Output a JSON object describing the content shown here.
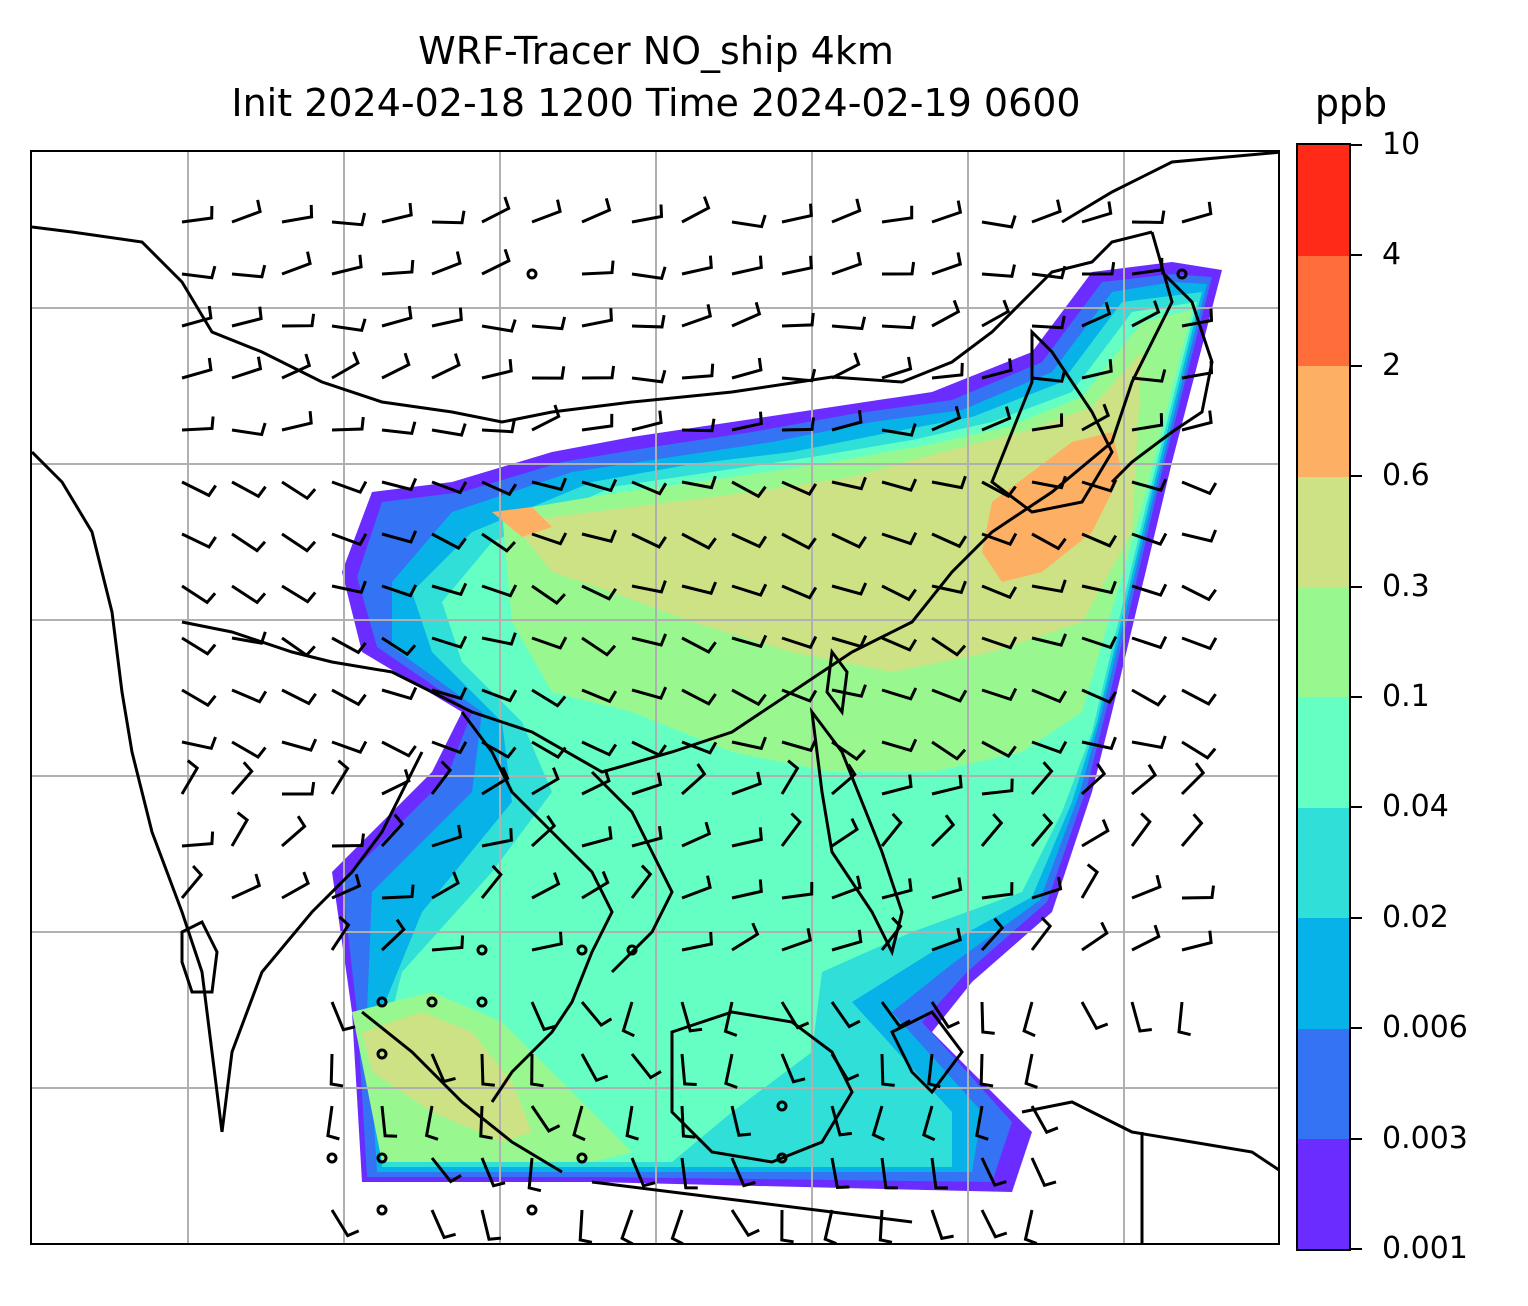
{
  "title": {
    "line1": "WRF-Tracer NO_ship 4km",
    "line2": "Init 2024-02-18 1200 Time 2024-02-19 0600"
  },
  "colorbar": {
    "unit": "ppb",
    "levels": [
      "0.001",
      "0.003",
      "0.006",
      "0.02",
      "0.04",
      "0.1",
      "0.3",
      "0.6",
      "2",
      "4",
      "10"
    ],
    "colors": [
      "#6a2cff",
      "#3473f3",
      "#06b2e8",
      "#2fdfd8",
      "#65ffc4",
      "#98f88f",
      "#cde185",
      "#fdb064",
      "#ff6e3a",
      "#ff2a18"
    ]
  },
  "map": {
    "gridlines": true,
    "coastline_color": "#000000",
    "grid_color": "#b0b0b0",
    "wind_barb_color": "#000000"
  }
}
